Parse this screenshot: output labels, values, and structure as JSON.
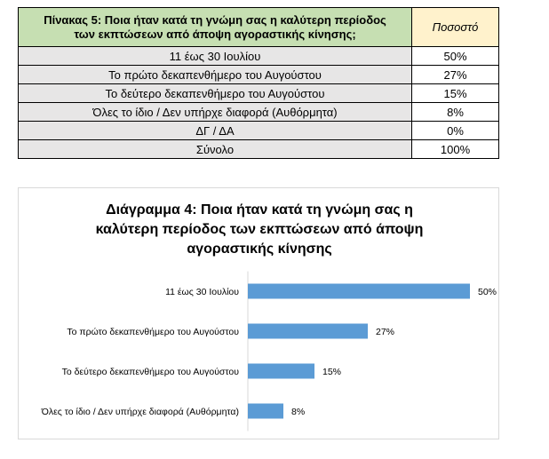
{
  "table": {
    "header_question_line1": "Πίνακας 5: Ποια ήταν κατά τη γνώμη σας η καλύτερη περίοδος",
    "header_question_line2": "των εκπτώσεων από άποψη αγοραστικής κίνησης;",
    "header_percent": "Ποσοστό",
    "rows": [
      {
        "label": "11 έως 30 Ιουλίου",
        "value": "50%"
      },
      {
        "label": "Το πρώτο δεκαπενθήμερο του Αυγούστου",
        "value": "27%"
      },
      {
        "label": "Το δεύτερο δεκαπενθήμερο του Αυγούστου",
        "value": "15%"
      },
      {
        "label": "Όλες το ίδιο / Δεν υπήρχε διαφορά (Αυθόρμητα)",
        "value": "8%"
      },
      {
        "label": "ΔΓ / ΔΑ",
        "value": "0%"
      },
      {
        "label": "Σύνολο",
        "value": "100%"
      }
    ]
  },
  "chart_data": {
    "type": "bar",
    "orientation": "horizontal",
    "title_lines": [
      "Διάγραμμα 4: Ποια ήταν κατά τη γνώμη σας η",
      "καλύτερη περίοδος των εκπτώσεων από άποψη",
      "αγοραστικής κίνησης"
    ],
    "categories": [
      "11 έως 30 Ιουλίου",
      "Το πρώτο δεκαπενθήμερο του Αυγούστου",
      "Το δεύτερο δεκαπενθήμερο του Αυγούστου",
      "Όλες το ίδιο / Δεν υπήρχε διαφορά (Αυθόρμητα)"
    ],
    "values": [
      50,
      27,
      15,
      8
    ],
    "value_labels": [
      "50%",
      "27%",
      "15%",
      "8%"
    ],
    "xlim": [
      0,
      100
    ],
    "bar_color": "#5b9bd5",
    "grid": false,
    "legend": "none"
  }
}
